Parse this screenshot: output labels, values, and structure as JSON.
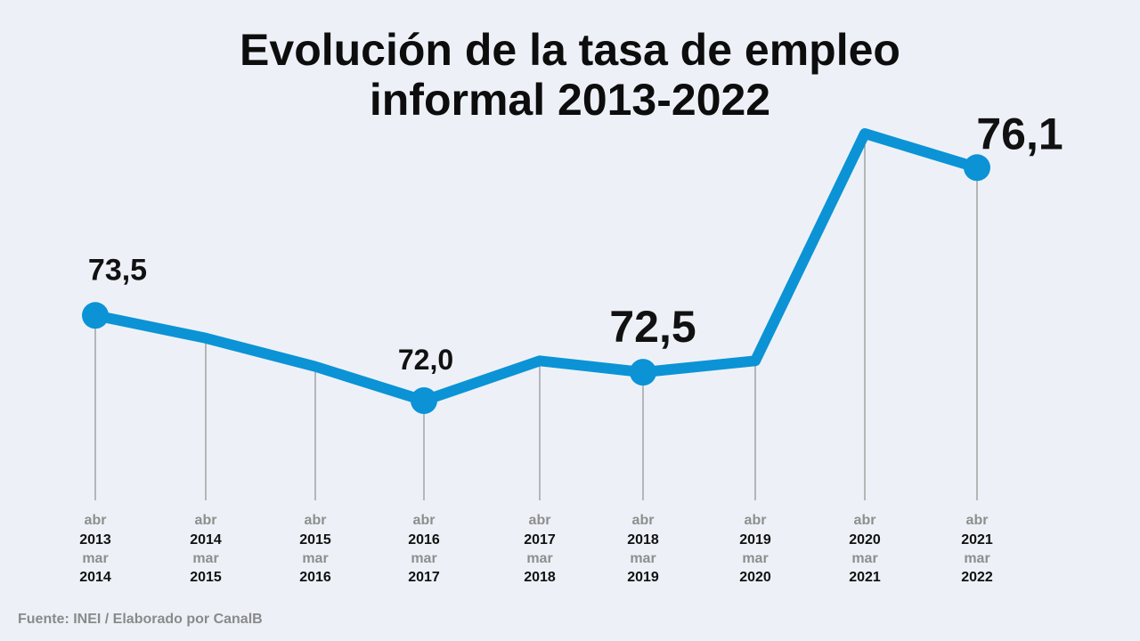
{
  "chart_data": {
    "type": "line",
    "title": [
      "Evolución de la tasa de empleo",
      "informal 2013-2022"
    ],
    "categories": [
      [
        "abr",
        "2013",
        "mar",
        "2014"
      ],
      [
        "abr",
        "2014",
        "mar",
        "2015"
      ],
      [
        "abr",
        "2015",
        "mar",
        "2016"
      ],
      [
        "abr",
        "2016",
        "mar",
        "2017"
      ],
      [
        "abr",
        "2017",
        "mar",
        "2018"
      ],
      [
        "abr",
        "2018",
        "mar",
        "2019"
      ],
      [
        "abr",
        "2019",
        "mar",
        "2020"
      ],
      [
        "abr",
        "2020",
        "mar",
        "2021"
      ],
      [
        "abr",
        "2021",
        "mar",
        "2022"
      ]
    ],
    "values": [
      73.5,
      73.1,
      72.6,
      72.0,
      72.7,
      72.5,
      72.7,
      76.7,
      76.1
    ],
    "data_labels": [
      {
        "index": 0,
        "text": "73,5",
        "size": "medium"
      },
      {
        "index": 3,
        "text": "72,0",
        "size": "medium"
      },
      {
        "index": 5,
        "text": "72,5",
        "size": "large"
      },
      {
        "index": 8,
        "text": "76,1",
        "size": "large"
      }
    ],
    "markers_at": [
      0,
      3,
      5,
      8
    ],
    "line_color": "#0b93d6",
    "ylim": [
      69.5,
      77.5
    ],
    "grid": false,
    "legend": "none"
  },
  "source": "Fuente: INEI / Elaborado por CanalB"
}
